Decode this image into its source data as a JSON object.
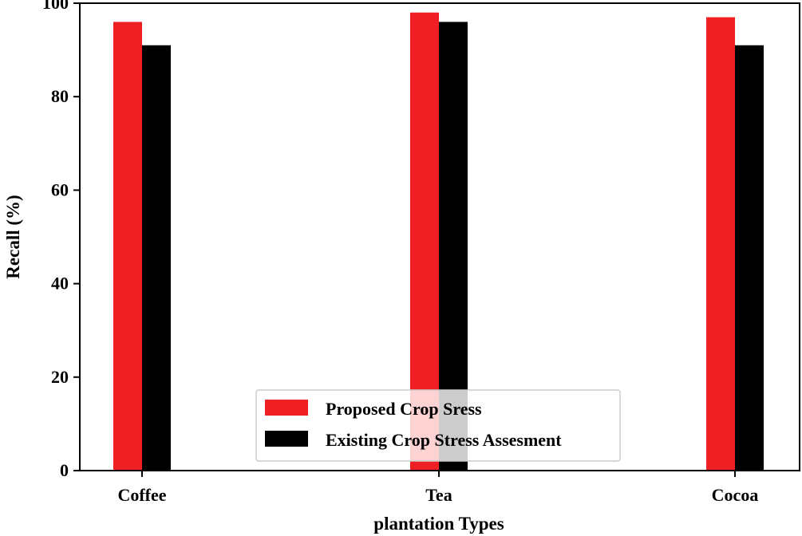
{
  "chart_data": {
    "type": "bar",
    "title": "",
    "categories": [
      "Coffee",
      "Tea",
      "Cocoa"
    ],
    "series": [
      {
        "name": "Proposed Crop Sress",
        "color": "#ee2024",
        "values": [
          96,
          98,
          97
        ]
      },
      {
        "name": "Existing Crop Stress Assesment",
        "color": "#000000",
        "values": [
          91,
          96,
          91
        ]
      }
    ],
    "xlabel": "plantation Types",
    "ylabel": "Recall (%)",
    "ylim": [
      0,
      100
    ],
    "yticks": [
      0,
      20,
      40,
      60,
      80,
      100
    ],
    "grid": false,
    "legend_position": "bottom-center"
  }
}
